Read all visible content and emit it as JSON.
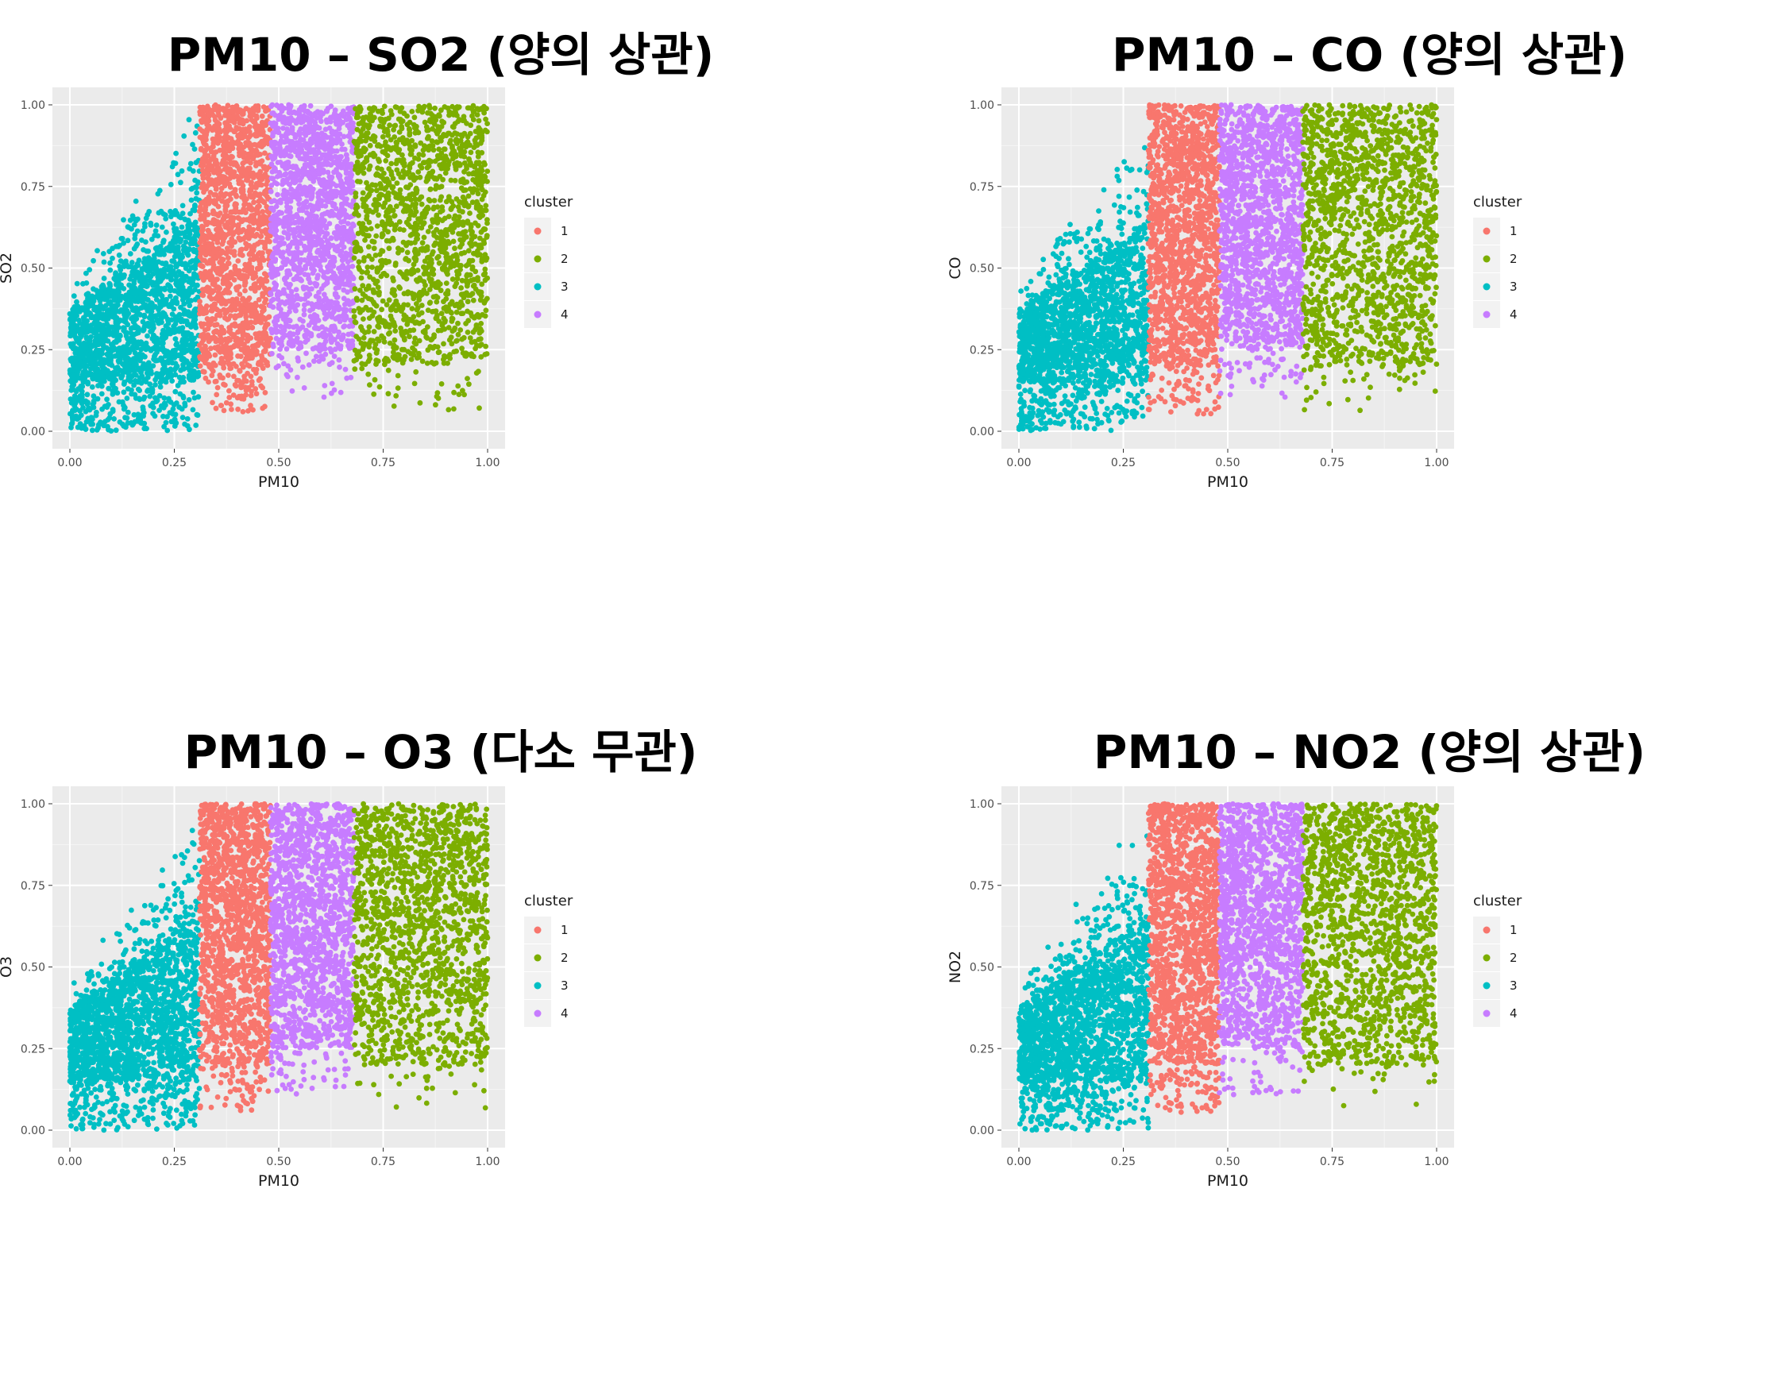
{
  "chart_data": [
    {
      "type": "scatter",
      "title": "PM10 – SO2 (양의 상관)",
      "xlabel": "PM10",
      "ylabel": "SO2",
      "xlim": [
        0,
        1
      ],
      "ylim": [
        0,
        1
      ],
      "x_ticks": [
        "0.00",
        "0.25",
        "0.50",
        "0.75",
        "1.00"
      ],
      "y_ticks": [
        "0.00",
        "0.25",
        "0.50",
        "0.75",
        "1.00"
      ],
      "grid": true,
      "legend": {
        "title": "cluster",
        "position": "right"
      },
      "series": [
        {
          "name": "1",
          "color": "#F8766D",
          "x_range": [
            0.31,
            0.48
          ],
          "y_range": [
            0.0,
            1.0
          ]
        },
        {
          "name": "2",
          "color": "#7CAE00",
          "x_range": [
            0.68,
            1.0
          ],
          "y_range": [
            0.0,
            1.0
          ]
        },
        {
          "name": "3",
          "color": "#00BFC4",
          "x_range": [
            0.0,
            0.31
          ],
          "y_range": [
            0.0,
            1.0
          ]
        },
        {
          "name": "4",
          "color": "#C77CFF",
          "x_range": [
            0.48,
            0.68
          ],
          "y_range": [
            0.0,
            1.0
          ]
        }
      ]
    },
    {
      "type": "scatter",
      "title": "PM10 – CO (양의 상관)",
      "xlabel": "PM10",
      "ylabel": "CO",
      "xlim": [
        0,
        1
      ],
      "ylim": [
        0,
        1
      ],
      "x_ticks": [
        "0.00",
        "0.25",
        "0.50",
        "0.75",
        "1.00"
      ],
      "y_ticks": [
        "0.00",
        "0.25",
        "0.50",
        "0.75",
        "1.00"
      ],
      "grid": true,
      "legend": {
        "title": "cluster",
        "position": "right"
      },
      "series": [
        {
          "name": "1",
          "color": "#F8766D",
          "x_range": [
            0.31,
            0.48
          ],
          "y_range": [
            0.0,
            1.0
          ]
        },
        {
          "name": "2",
          "color": "#7CAE00",
          "x_range": [
            0.68,
            1.0
          ],
          "y_range": [
            0.0,
            1.0
          ]
        },
        {
          "name": "3",
          "color": "#00BFC4",
          "x_range": [
            0.0,
            0.31
          ],
          "y_range": [
            0.0,
            1.0
          ]
        },
        {
          "name": "4",
          "color": "#C77CFF",
          "x_range": [
            0.48,
            0.68
          ],
          "y_range": [
            0.0,
            1.0
          ]
        }
      ]
    },
    {
      "type": "scatter",
      "title": "PM10 – O3 (다소 무관)",
      "xlabel": "PM10",
      "ylabel": "O3",
      "xlim": [
        0,
        1
      ],
      "ylim": [
        0,
        1
      ],
      "x_ticks": [
        "0.00",
        "0.25",
        "0.50",
        "0.75",
        "1.00"
      ],
      "y_ticks": [
        "0.00",
        "0.25",
        "0.50",
        "0.75",
        "1.00"
      ],
      "grid": true,
      "legend": {
        "title": "cluster",
        "position": "right"
      },
      "series": [
        {
          "name": "1",
          "color": "#F8766D",
          "x_range": [
            0.31,
            0.48
          ],
          "y_range": [
            0.0,
            1.0
          ]
        },
        {
          "name": "2",
          "color": "#7CAE00",
          "x_range": [
            0.68,
            1.0
          ],
          "y_range": [
            0.0,
            1.0
          ]
        },
        {
          "name": "3",
          "color": "#00BFC4",
          "x_range": [
            0.0,
            0.31
          ],
          "y_range": [
            0.0,
            1.0
          ]
        },
        {
          "name": "4",
          "color": "#C77CFF",
          "x_range": [
            0.48,
            0.68
          ],
          "y_range": [
            0.0,
            1.0
          ]
        }
      ]
    },
    {
      "type": "scatter",
      "title": "PM10 – NO2 (양의 상관)",
      "xlabel": "PM10",
      "ylabel": "NO2",
      "xlim": [
        0,
        1
      ],
      "ylim": [
        0,
        1
      ],
      "x_ticks": [
        "0.00",
        "0.25",
        "0.50",
        "0.75",
        "1.00"
      ],
      "y_ticks": [
        "0.00",
        "0.25",
        "0.50",
        "0.75",
        "1.00"
      ],
      "grid": true,
      "legend": {
        "title": "cluster",
        "position": "right"
      },
      "series": [
        {
          "name": "1",
          "color": "#F8766D",
          "x_range": [
            0.31,
            0.48
          ],
          "y_range": [
            0.0,
            1.0
          ]
        },
        {
          "name": "2",
          "color": "#7CAE00",
          "x_range": [
            0.68,
            1.0
          ],
          "y_range": [
            0.0,
            1.0
          ]
        },
        {
          "name": "3",
          "color": "#00BFC4",
          "x_range": [
            0.0,
            0.31
          ],
          "y_range": [
            0.0,
            1.0
          ]
        },
        {
          "name": "4",
          "color": "#C77CFF",
          "x_range": [
            0.48,
            0.68
          ],
          "y_range": [
            0.0,
            1.0
          ]
        }
      ]
    }
  ]
}
